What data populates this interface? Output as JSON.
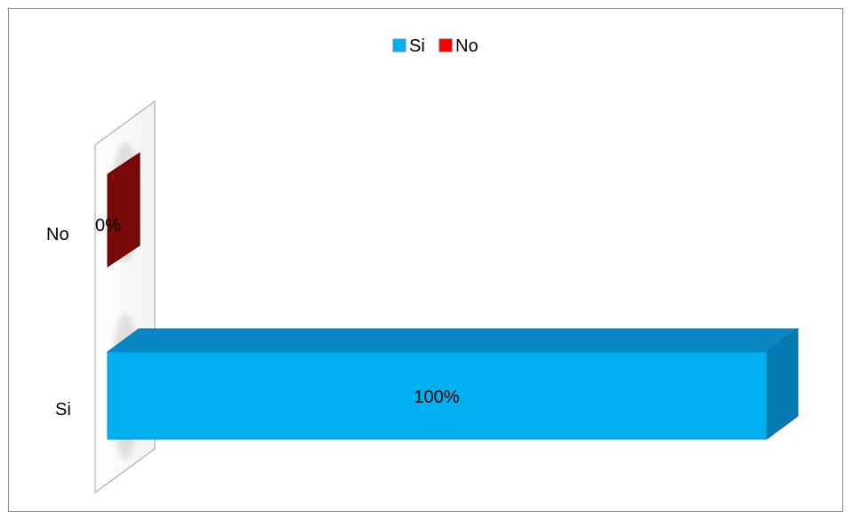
{
  "chart_data": {
    "type": "bar",
    "orientation": "horizontal",
    "style": "3d",
    "categories": [
      "Si",
      "No"
    ],
    "series": [
      {
        "name": "Si",
        "values": [
          100,
          null
        ],
        "color": "#00B0F0"
      },
      {
        "name": "No",
        "values": [
          null,
          0
        ],
        "color": "#FF0000"
      }
    ],
    "data_labels": [
      "100%",
      "0%"
    ],
    "value_unit": "%",
    "xlim": [
      0,
      100
    ],
    "legend": {
      "position": "top",
      "items": [
        "Si",
        "No"
      ]
    },
    "grid": false,
    "title": "",
    "xlabel": "",
    "ylabel": ""
  }
}
